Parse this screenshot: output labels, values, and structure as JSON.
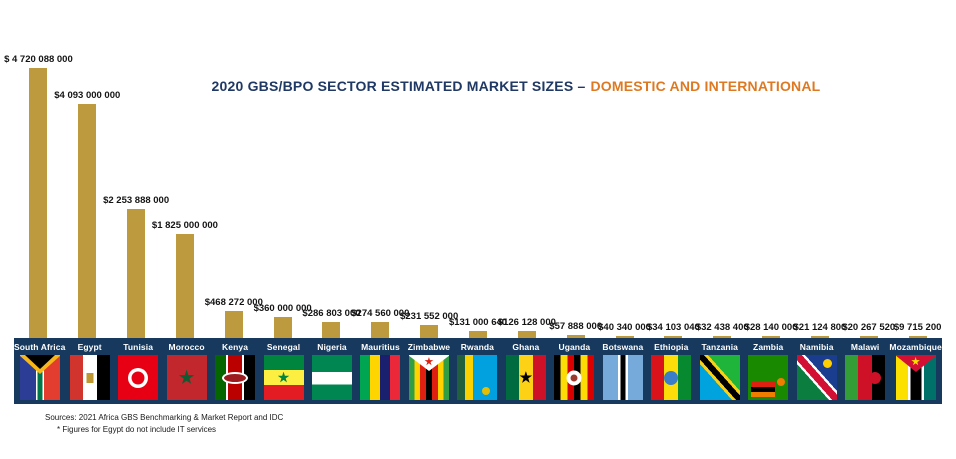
{
  "title": {
    "main": "2020 GBS/BPO SECTOR ESTIMATED MARKET SIZES –",
    "highlight": "DOMESTIC AND INTERNATIONAL"
  },
  "chart_data": {
    "type": "bar",
    "title": "2020 GBS/BPO SECTOR ESTIMATED MARKET SIZES – DOMESTIC AND INTERNATIONAL",
    "unit": "USD",
    "ylim": [
      0,
      4720088000
    ],
    "grid": false,
    "legend": false,
    "categories": [
      "South Africa",
      "Egypt",
      "Tunisia",
      "Morocco",
      "Kenya",
      "Senegal",
      "Nigeria",
      "Mauritius",
      "Zimbabwe",
      "Rwanda",
      "Ghana",
      "Uganda",
      "Botswana",
      "Ethiopia",
      "Tanzania",
      "Zambia",
      "Namibia",
      "Malawi",
      "Mozambique"
    ],
    "values": [
      4720088000,
      4093000000,
      2253888000,
      1825000000,
      468272000,
      360000000,
      286803000,
      274560000,
      231552000,
      131000640,
      126128000,
      57888000,
      40340000,
      34103040,
      32438400,
      28140000,
      21124800,
      20267520,
      9715200
    ],
    "value_labels": [
      "$ 4 720 088 000",
      "$4 093 000 000",
      "$2 253 888 000",
      "$1 825 000 000",
      "$468 272 000",
      "$360 000 000",
      "$286 803 000",
      "$274 560 000",
      "$231 552 000",
      "$131 000 640",
      "$126 128 000",
      "$57 888 000",
      "$40 340 000",
      "$34 103 040",
      "$32 438 400",
      "$28 140 000",
      "$21 124 800",
      "$20 267 520",
      "$9 715 200"
    ],
    "flags": [
      "south-africa",
      "egypt",
      "tunisia",
      "morocco",
      "kenya",
      "senegal",
      "nigeria",
      "mauritius",
      "zimbabwe",
      "rwanda",
      "ghana",
      "uganda",
      "botswana",
      "ethiopia",
      "tanzania",
      "zambia",
      "namibia",
      "malawi",
      "mozambique"
    ]
  },
  "footer": {
    "line1": "Sources: 2021 Africa GBS Benchmarking & Market Report and IDC",
    "line2": "* Figures for Egypt do not include IT services"
  },
  "colors": {
    "bar": "#BD9A3D",
    "band": "#17395E",
    "title_navy": "#1F3864",
    "title_orange": "#DE7921"
  }
}
